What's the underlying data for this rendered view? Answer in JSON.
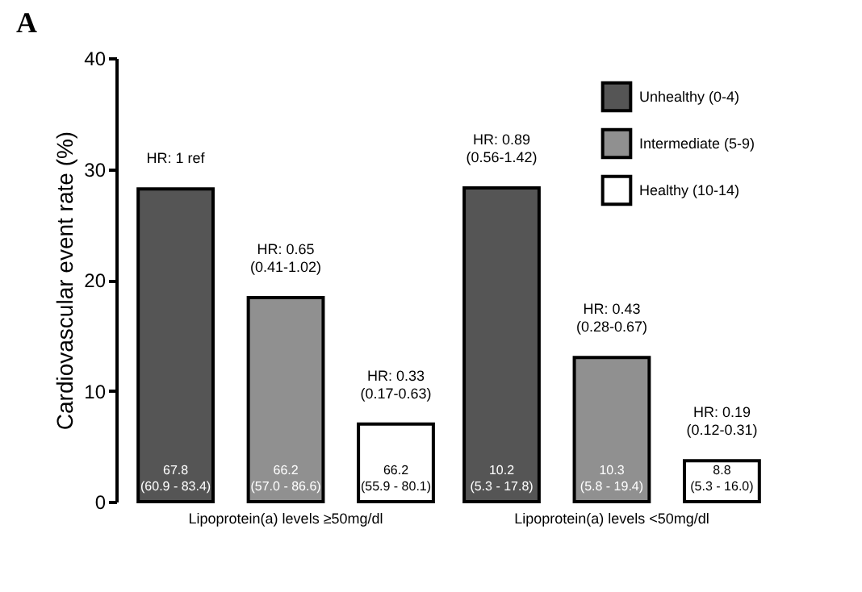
{
  "chart_data": {
    "type": "bar",
    "title": "A",
    "ylabel": "Cardiovascular event rate (%)",
    "categories": [
      "Lipoprotein(a) levels ≥50mg/dl",
      "Lipoprotein(a) levels <50mg/dl"
    ],
    "series": [
      {
        "name": "Unhealthy (0-4)",
        "color": "#555555",
        "values": [
          28.2,
          28.3
        ]
      },
      {
        "name": "Intermediate (5-9)",
        "color": "#909090",
        "values": [
          18.4,
          13.0
        ]
      },
      {
        "name": "Healthy (10-14)",
        "color": "#ffffff",
        "values": [
          7.0,
          3.7
        ]
      }
    ],
    "annotations": [
      "HR: 1 ref",
      "HR: 0.65\n(0.41-1.02)",
      "HR: 0.33\n(0.17-0.63)",
      "HR: 0.89\n(0.56-1.42)",
      "HR: 0.43\n(0.28-0.67)",
      "HR: 0.19\n(0.12-0.31)",
      "67.8\n(60.9 - 83.4)",
      "66.2\n(57.0 - 86.6)",
      "66.2\n(55.9 - 80.1)",
      "10.2\n(5.3 - 17.8)",
      "10.3\n(5.8 - 19.4)",
      "8.8\n(5.3 - 16.0)"
    ],
    "ylim": [
      0,
      40
    ],
    "yticks": [
      0,
      10,
      20,
      30,
      40
    ],
    "grid": false,
    "legend": "top right"
  }
}
